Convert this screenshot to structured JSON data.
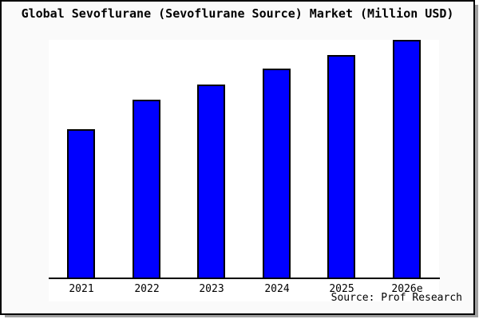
{
  "page": {
    "title": "Global Sevoflurane (Sevoflurane Source) Market (Million USD)",
    "source_note": "Source: Prof Research"
  },
  "colors": {
    "bar_fill": "#0000ff",
    "bar_border": "#000000",
    "frame_border": "#000000",
    "frame_background": "#fafafa",
    "plot_background": "#ffffff",
    "axis": "#000000",
    "shadow": "#a0a0a0",
    "text": "#000000"
  },
  "chart_data": {
    "type": "bar",
    "title": "Global Sevoflurane (Sevoflurane Source) Market (Million USD)",
    "categories": [
      "2021",
      "2022",
      "2023",
      "2024",
      "2025",
      "2026e"
    ],
    "values": [
      62.7,
      75.0,
      81.3,
      88.0,
      93.7,
      100.0
    ],
    "value_unit": "percent of tallest bar (chart shows no y-axis tick labels or gridlines)",
    "series_name": "Market size (Million USD)",
    "xlabel": "",
    "ylabel": "",
    "grid": false,
    "legend": "none",
    "y_axis_labels_visible": false,
    "annotations": [
      "Source: Prof Research"
    ]
  }
}
